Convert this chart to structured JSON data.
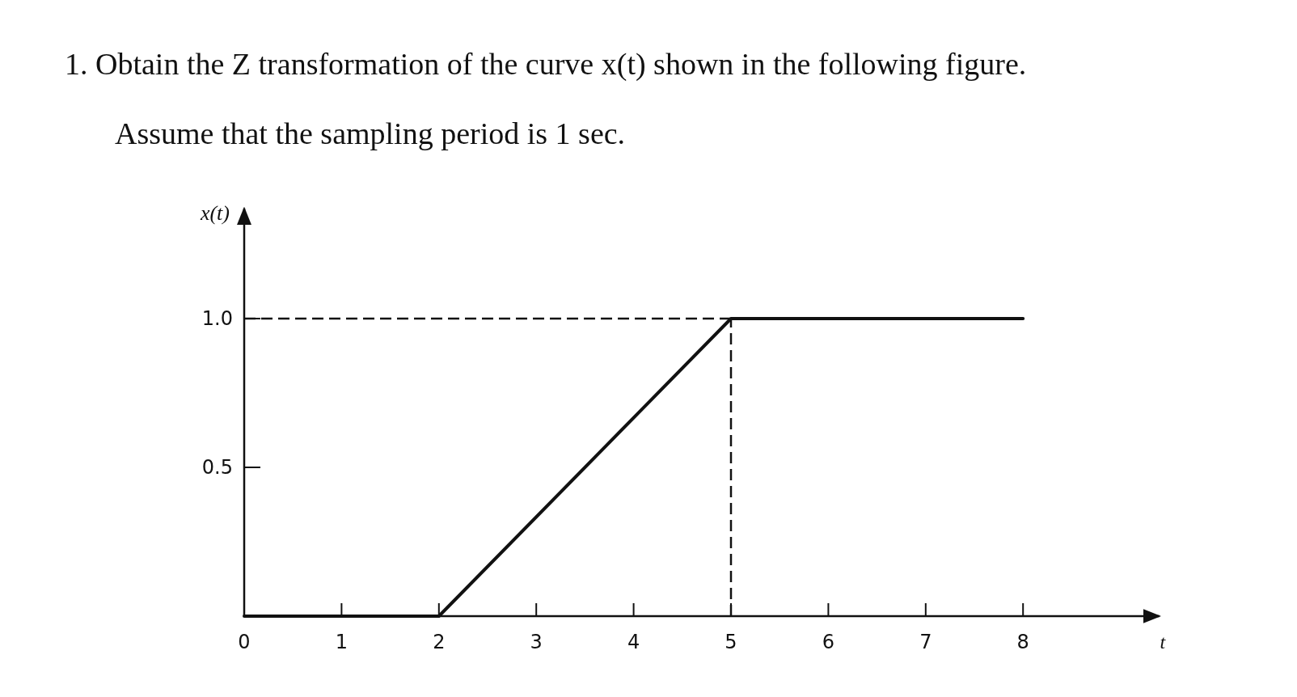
{
  "chart_data": {
    "type": "line",
    "title": "1. Obtain the Z transformation of the curve x(t) shown in the following figure.",
    "subtitle": "Assume that the sampling period is 1 sec.",
    "xlabel": "t",
    "ylabel": "x(t)",
    "x": [
      0,
      2,
      5,
      8
    ],
    "series": [
      {
        "color": "#111111",
        "values": [
          0,
          0,
          1,
          1
        ]
      }
    ],
    "xlim": [
      0,
      9.4
    ],
    "ylim": [
      0,
      1.37
    ],
    "xticks": [
      0,
      1,
      2,
      3,
      4,
      5,
      6,
      7,
      8
    ],
    "yticks": [
      {
        "value": 0.5,
        "label": "0.5"
      },
      {
        "value": 1,
        "label": "1.0"
      }
    ],
    "ref_lines": [
      {
        "axis": "y",
        "value": 1,
        "line_style": "dashed",
        "color": "#111111"
      },
      {
        "axis": "x",
        "value": 5,
        "line_style": "dashed",
        "color": "#111111"
      }
    ],
    "line_style": "solid"
  }
}
